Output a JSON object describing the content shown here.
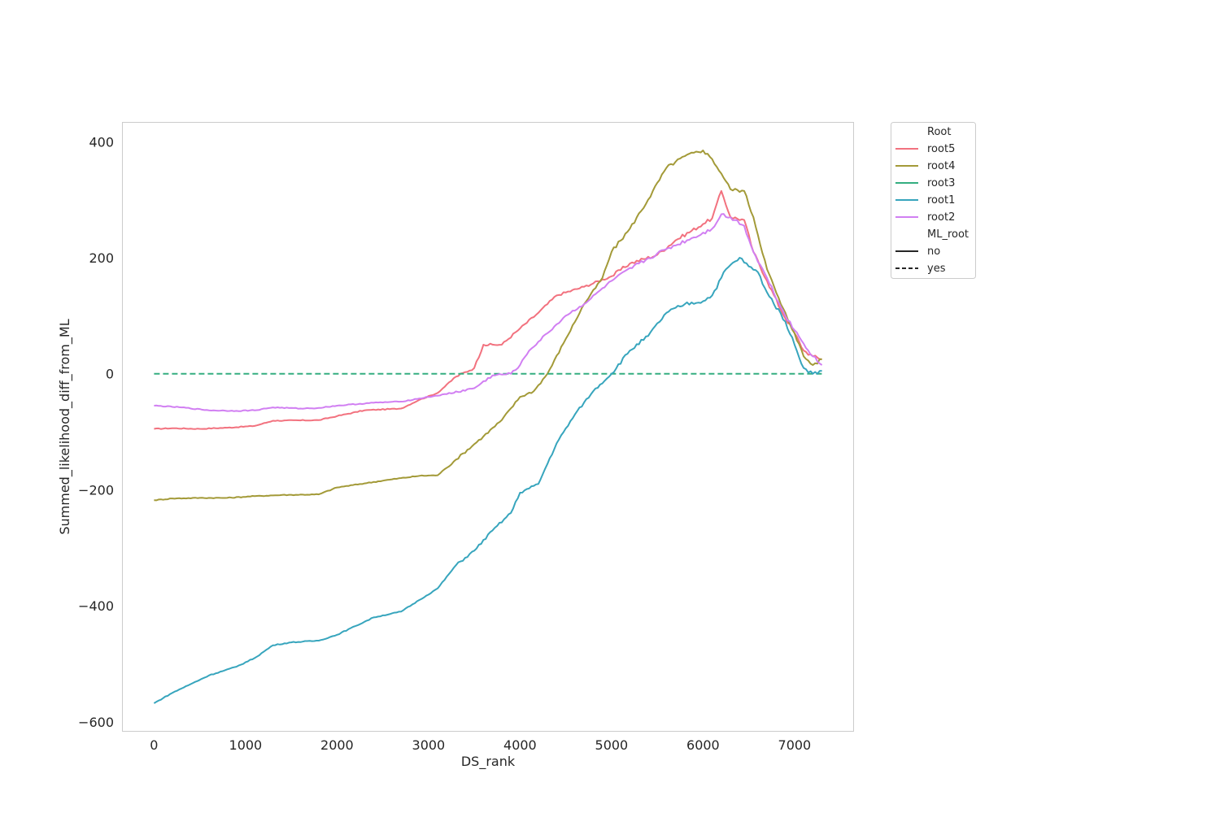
{
  "chart_data": {
    "type": "line",
    "title": "",
    "xlabel": "DS_rank",
    "ylabel": "Summed_likelihood_diff_from_ML",
    "xlim": [
      -350,
      7650
    ],
    "ylim": [
      -617,
      434
    ],
    "xticks": [
      0,
      1000,
      2000,
      3000,
      4000,
      5000,
      6000,
      7000
    ],
    "yticks": [
      400,
      200,
      0,
      -200,
      -400,
      -600
    ],
    "grid": false,
    "legend": {
      "placement": "outside-right",
      "hue_title": "Root",
      "style_title": "ML_root",
      "styles": [
        {
          "label": "no",
          "dash": "solid"
        },
        {
          "label": "yes",
          "dash": "dashed"
        }
      ]
    },
    "series": [
      {
        "name": "root5",
        "color": "#f2727f",
        "dash": "solid",
        "points": [
          [
            0,
            -95
          ],
          [
            200,
            -94
          ],
          [
            500,
            -95
          ],
          [
            800,
            -93
          ],
          [
            1100,
            -90
          ],
          [
            1300,
            -81
          ],
          [
            1800,
            -80
          ],
          [
            2000,
            -73
          ],
          [
            2300,
            -63
          ],
          [
            2700,
            -60
          ],
          [
            2900,
            -45
          ],
          [
            3100,
            -33
          ],
          [
            3300,
            -5
          ],
          [
            3500,
            10
          ],
          [
            3600,
            50
          ],
          [
            3800,
            50
          ],
          [
            4000,
            78
          ],
          [
            4200,
            105
          ],
          [
            4400,
            135
          ],
          [
            4700,
            150
          ],
          [
            5000,
            168
          ],
          [
            5200,
            190
          ],
          [
            5500,
            205
          ],
          [
            5700,
            230
          ],
          [
            6000,
            258
          ],
          [
            6100,
            268
          ],
          [
            6200,
            315
          ],
          [
            6300,
            270
          ],
          [
            6450,
            265
          ],
          [
            6550,
            210
          ],
          [
            6700,
            160
          ],
          [
            6850,
            110
          ],
          [
            7000,
            70
          ],
          [
            7100,
            40
          ],
          [
            7200,
            30
          ],
          [
            7300,
            25
          ]
        ]
      },
      {
        "name": "root4",
        "color": "#a39a38",
        "dash": "solid",
        "points": [
          [
            0,
            -218
          ],
          [
            200,
            -215
          ],
          [
            500,
            -214
          ],
          [
            800,
            -214
          ],
          [
            1100,
            -211
          ],
          [
            1400,
            -209
          ],
          [
            1800,
            -208
          ],
          [
            2000,
            -196
          ],
          [
            2300,
            -189
          ],
          [
            2600,
            -182
          ],
          [
            2900,
            -176
          ],
          [
            3100,
            -175
          ],
          [
            3300,
            -148
          ],
          [
            3600,
            -108
          ],
          [
            3800,
            -80
          ],
          [
            4000,
            -40
          ],
          [
            4150,
            -30
          ],
          [
            4300,
            0
          ],
          [
            4500,
            60
          ],
          [
            4700,
            120
          ],
          [
            4900,
            165
          ],
          [
            5000,
            210
          ],
          [
            5200,
            250
          ],
          [
            5400,
            300
          ],
          [
            5600,
            355
          ],
          [
            5800,
            375
          ],
          [
            6000,
            385
          ],
          [
            6100,
            370
          ],
          [
            6200,
            345
          ],
          [
            6300,
            318
          ],
          [
            6450,
            315
          ],
          [
            6550,
            270
          ],
          [
            6700,
            180
          ],
          [
            6850,
            120
          ],
          [
            7000,
            70
          ],
          [
            7100,
            30
          ],
          [
            7200,
            15
          ],
          [
            7300,
            25
          ]
        ]
      },
      {
        "name": "root3",
        "color": "#34ae80",
        "dash": "dashed",
        "points": [
          [
            0,
            0
          ],
          [
            7300,
            0
          ]
        ]
      },
      {
        "name": "root1",
        "color": "#37a5bd",
        "dash": "solid",
        "points": [
          [
            0,
            -568
          ],
          [
            200,
            -550
          ],
          [
            400,
            -535
          ],
          [
            600,
            -520
          ],
          [
            900,
            -505
          ],
          [
            1100,
            -490
          ],
          [
            1300,
            -468
          ],
          [
            1500,
            -463
          ],
          [
            1800,
            -460
          ],
          [
            2000,
            -450
          ],
          [
            2200,
            -435
          ],
          [
            2400,
            -420
          ],
          [
            2700,
            -410
          ],
          [
            2900,
            -390
          ],
          [
            3100,
            -370
          ],
          [
            3300,
            -330
          ],
          [
            3500,
            -305
          ],
          [
            3700,
            -270
          ],
          [
            3900,
            -240
          ],
          [
            4000,
            -205
          ],
          [
            4200,
            -190
          ],
          [
            4400,
            -120
          ],
          [
            4600,
            -70
          ],
          [
            4800,
            -30
          ],
          [
            5000,
            0
          ],
          [
            5200,
            40
          ],
          [
            5400,
            65
          ],
          [
            5600,
            105
          ],
          [
            5800,
            120
          ],
          [
            6000,
            125
          ],
          [
            6100,
            135
          ],
          [
            6250,
            180
          ],
          [
            6400,
            200
          ],
          [
            6500,
            185
          ],
          [
            6600,
            175
          ],
          [
            6700,
            140
          ],
          [
            6900,
            90
          ],
          [
            7000,
            50
          ],
          [
            7100,
            10
          ],
          [
            7200,
            0
          ],
          [
            7300,
            5
          ]
        ]
      },
      {
        "name": "root2",
        "color": "#d17ff2",
        "dash": "solid",
        "points": [
          [
            0,
            -55
          ],
          [
            300,
            -58
          ],
          [
            600,
            -63
          ],
          [
            900,
            -64
          ],
          [
            1100,
            -63
          ],
          [
            1300,
            -58
          ],
          [
            1600,
            -60
          ],
          [
            1800,
            -59
          ],
          [
            2000,
            -55
          ],
          [
            2400,
            -50
          ],
          [
            2700,
            -48
          ],
          [
            3000,
            -40
          ],
          [
            3200,
            -35
          ],
          [
            3500,
            -25
          ],
          [
            3700,
            -3
          ],
          [
            3900,
            0
          ],
          [
            4000,
            15
          ],
          [
            4100,
            40
          ],
          [
            4300,
            70
          ],
          [
            4500,
            100
          ],
          [
            4700,
            120
          ],
          [
            5000,
            160
          ],
          [
            5300,
            190
          ],
          [
            5600,
            215
          ],
          [
            5900,
            235
          ],
          [
            6100,
            250
          ],
          [
            6200,
            275
          ],
          [
            6350,
            265
          ],
          [
            6450,
            255
          ],
          [
            6550,
            210
          ],
          [
            6700,
            165
          ],
          [
            6850,
            115
          ],
          [
            7000,
            75
          ],
          [
            7200,
            30
          ],
          [
            7300,
            15
          ]
        ]
      }
    ]
  }
}
